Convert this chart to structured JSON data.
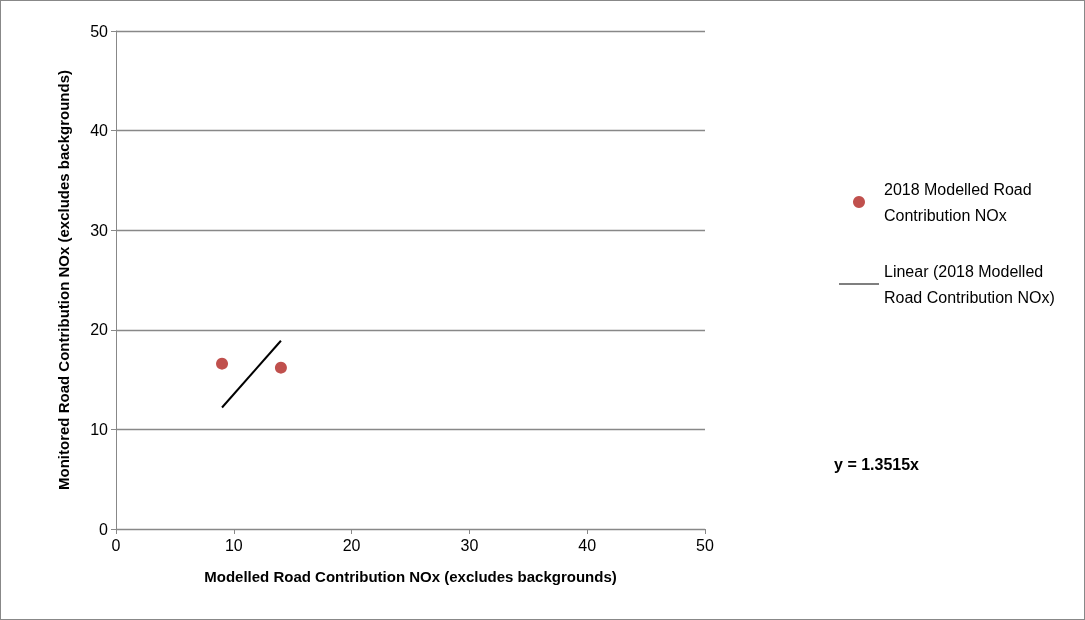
{
  "chart_data": {
    "type": "scatter",
    "xlabel": "Modelled Road Contribution NOx (excludes backgrounds)",
    "ylabel": "Monitored Road Contribution NOx (excludes backgrounds)",
    "xlim": [
      0,
      50
    ],
    "xticks": [
      0,
      10,
      20,
      30,
      40,
      50
    ],
    "ylim": [
      0,
      50
    ],
    "yticks": [
      0,
      10,
      20,
      30,
      40,
      50
    ],
    "grid": "y",
    "legend": "right",
    "x": [
      9.0,
      14.0
    ],
    "series": [
      {
        "name": "2018 Modelled Road Contribution NOx",
        "marker": "circle",
        "color": "#c0504d",
        "values": [
          16.6,
          16.2
        ]
      },
      {
        "name": "Linear (2018 Modelled Road Contribution NOx)",
        "type": "line",
        "marker": "none",
        "color": "#000000",
        "line_style": "solid",
        "values": [
          12.2,
          18.9
        ]
      }
    ],
    "annotations": [
      "y = 1.3515x"
    ]
  }
}
